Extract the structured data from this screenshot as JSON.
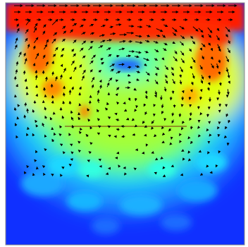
{
  "figure": {
    "description_kind": "velocity-vector-field-over-scalar-colormap",
    "colormap": [
      "#0000ff",
      "#00a0ff",
      "#00ffff",
      "#40ff80",
      "#a0ff00",
      "#ffff00",
      "#ff8000",
      "#ff0000"
    ],
    "background_color": "#ffffff",
    "border_color": "#808080",
    "arrow_color": "#000000",
    "centerline_color": "#7a2a10"
  }
}
